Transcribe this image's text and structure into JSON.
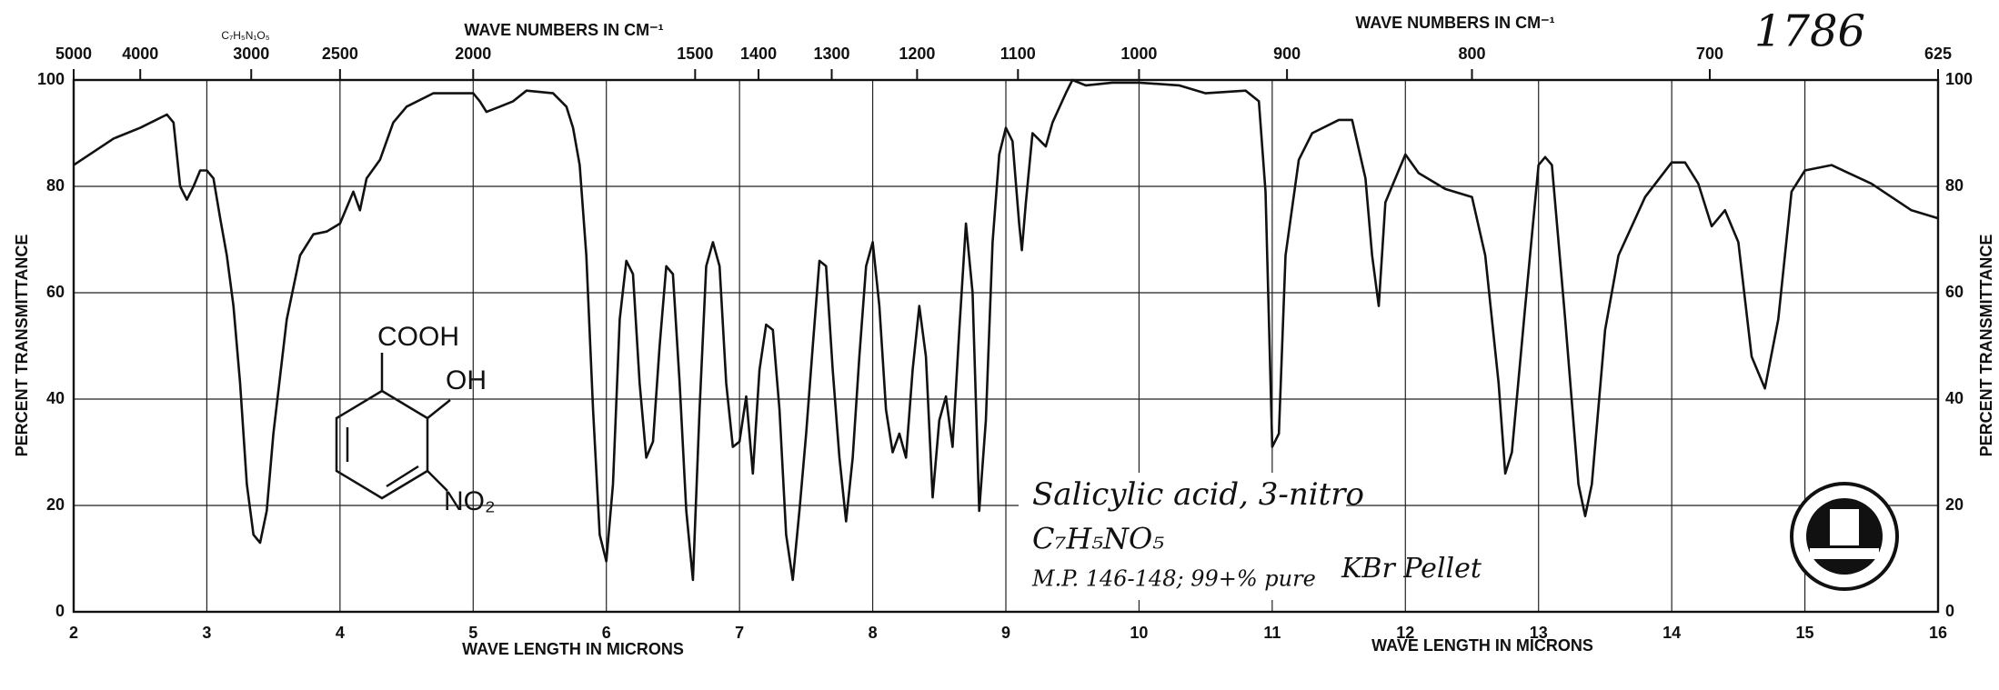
{
  "chart_data": {
    "type": "line",
    "x_label": "WAVE LENGTH IN MICRONS",
    "x2_label": "WAVE NUMBERS IN CM⁻¹",
    "y_label": "PERCENT TRANSMITTANCE",
    "formula_small": "C₇H₅N₁O₅",
    "spectrum_number": "1786",
    "annotations": [
      "Salicylic acid, 3-nitro",
      "C₇H₅NO₅",
      "M.P. 146-148; 99+% pure",
      "KBr Pellet"
    ],
    "structure_labels": [
      "COOH",
      "OH",
      "NO₂"
    ],
    "xlim": [
      2,
      16
    ],
    "xticks": [
      2,
      3,
      4,
      5,
      6,
      7,
      8,
      9,
      10,
      11,
      12,
      13,
      14,
      15,
      16
    ],
    "x2ticks": [
      5000,
      4000,
      3000,
      2500,
      2000,
      1500,
      1400,
      1300,
      1200,
      1100,
      1000,
      900,
      800,
      700,
      625
    ],
    "ylim": [
      0,
      100
    ],
    "yticks": [
      0,
      20,
      40,
      60,
      80,
      100
    ],
    "grid": true,
    "color": "#111111",
    "x": [
      2.0,
      2.3,
      2.5,
      2.7,
      2.75,
      2.8,
      2.85,
      2.9,
      2.95,
      3.0,
      3.05,
      3.1,
      3.15,
      3.2,
      3.25,
      3.3,
      3.35,
      3.4,
      3.45,
      3.5,
      3.6,
      3.7,
      3.8,
      3.9,
      4.0,
      4.1,
      4.15,
      4.2,
      4.3,
      4.4,
      4.5,
      4.7,
      5.0,
      5.05,
      5.1,
      5.2,
      5.3,
      5.4,
      5.6,
      5.7,
      5.75,
      5.8,
      5.85,
      5.9,
      5.95,
      6.0,
      6.05,
      6.1,
      6.15,
      6.2,
      6.25,
      6.3,
      6.35,
      6.4,
      6.45,
      6.5,
      6.55,
      6.6,
      6.65,
      6.7,
      6.75,
      6.8,
      6.85,
      6.9,
      6.95,
      7.0,
      7.05,
      7.1,
      7.15,
      7.2,
      7.25,
      7.3,
      7.35,
      7.4,
      7.45,
      7.5,
      7.55,
      7.6,
      7.65,
      7.7,
      7.75,
      7.8,
      7.85,
      7.9,
      7.95,
      8.0,
      8.05,
      8.1,
      8.15,
      8.2,
      8.25,
      8.3,
      8.35,
      8.4,
      8.45,
      8.5,
      8.55,
      8.6,
      8.65,
      8.7,
      8.75,
      8.8,
      8.85,
      8.9,
      8.95,
      9.0,
      9.05,
      9.1,
      9.12,
      9.15,
      9.2,
      9.3,
      9.35,
      9.45,
      9.5,
      9.6,
      9.8,
      10.0,
      10.3,
      10.5,
      10.8,
      10.9,
      10.95,
      11.0,
      11.05,
      11.1,
      11.2,
      11.3,
      11.5,
      11.6,
      11.7,
      11.75,
      11.8,
      11.85,
      11.9,
      12.0,
      12.1,
      12.3,
      12.5,
      12.6,
      12.7,
      12.75,
      12.8,
      12.9,
      13.0,
      13.05,
      13.1,
      13.2,
      13.3,
      13.35,
      13.4,
      13.5,
      13.6,
      13.8,
      14.0,
      14.1,
      14.2,
      14.3,
      14.4,
      14.5,
      14.6,
      14.7,
      14.8,
      14.9,
      15.0,
      15.2,
      15.5,
      15.8,
      16.0
    ],
    "values": [
      84,
      89,
      91,
      93.5,
      92,
      80,
      77.5,
      80,
      83,
      83,
      81.5,
      74,
      67,
      57.5,
      43,
      24,
      14.5,
      13,
      19,
      33.5,
      55,
      67,
      71,
      71.5,
      73,
      79,
      75.5,
      81.5,
      85,
      92,
      95,
      97.5,
      97.5,
      96,
      94,
      95,
      96,
      98,
      97.5,
      95,
      91,
      84,
      67,
      38,
      14.5,
      9.5,
      24,
      55,
      66,
      63.5,
      43,
      29,
      32,
      50,
      65,
      63.5,
      43,
      19,
      6,
      38,
      65,
      69.5,
      65,
      43,
      31,
      32,
      40.5,
      26,
      45.5,
      54,
      53,
      38,
      14.5,
      6,
      19,
      33.5,
      50,
      66,
      65,
      45.5,
      29,
      17,
      29,
      48,
      65,
      69.5,
      57.5,
      38,
      30,
      33.5,
      29,
      45.5,
      57.5,
      48,
      21.5,
      36,
      40.5,
      31,
      53,
      73,
      60,
      19,
      36,
      69.5,
      86,
      91,
      88.5,
      73,
      68,
      77,
      90,
      87.5,
      92,
      97.5,
      100,
      99,
      99.5,
      99.5,
      99,
      97.5,
      98,
      96,
      79,
      31,
      33.5,
      67,
      85,
      90,
      92.5,
      92.5,
      81.5,
      67,
      57.5,
      77,
      80,
      86,
      82.5,
      79.5,
      78,
      67,
      43,
      26,
      30,
      57.5,
      84,
      85.5,
      84,
      55,
      24,
      18,
      24,
      53,
      67,
      78,
      84.5,
      84.5,
      80.5,
      72.5,
      75.5,
      69.5,
      48,
      42,
      55,
      79,
      83,
      84,
      80.5,
      75.5,
      74
    ]
  }
}
